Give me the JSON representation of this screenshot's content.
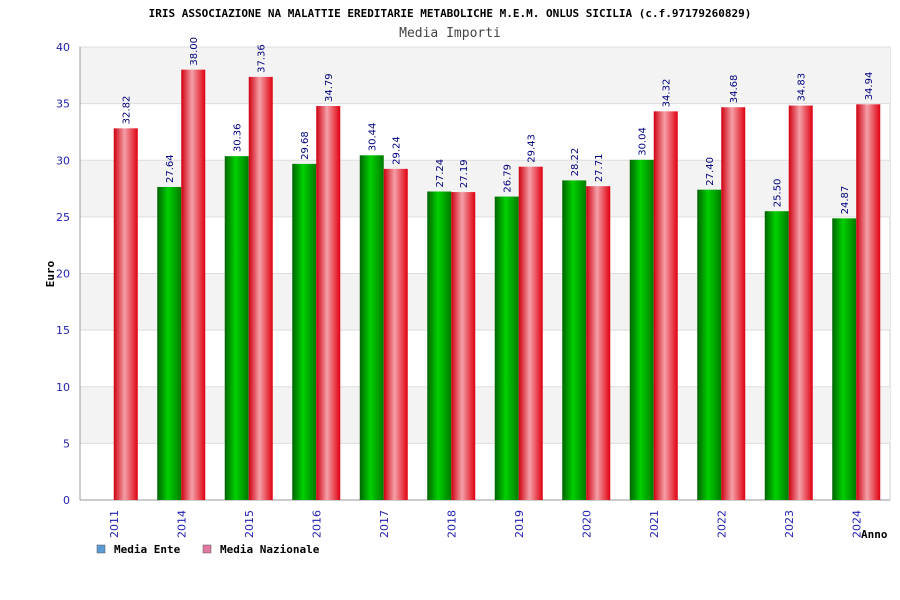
{
  "chart_data": {
    "type": "bar",
    "title": "IRIS ASSOCIAZIONE NA MALATTIE EREDITARIE METABOLICHE M.E.M. ONLUS SICILIA (c.f.97179260829)",
    "subtitle": "Media Importi",
    "xlabel": "Anno",
    "ylabel": "Euro",
    "ylim": [
      0,
      40
    ],
    "yticks": [
      "0",
      "5",
      "10",
      "15",
      "20",
      "25",
      "30",
      "35",
      "40"
    ],
    "grid": true,
    "legend_position": "bottom-left",
    "categories": [
      "2011",
      "2014",
      "2015",
      "2016",
      "2017",
      "2018",
      "2019",
      "2020",
      "2021",
      "2022",
      "2023",
      "2024"
    ],
    "series": [
      {
        "name": "Media Ente",
        "color": "#00a000",
        "legend_color": "#5b9bd5",
        "values": [
          null,
          27.64,
          30.36,
          29.68,
          30.44,
          27.24,
          26.79,
          28.22,
          30.04,
          27.4,
          25.5,
          24.87
        ],
        "labels": [
          "",
          "27.64",
          "30.36",
          "29.68",
          "30.44",
          "27.24",
          "26.79",
          "28.22",
          "30.04",
          "27.40",
          "25.50",
          "24.87"
        ]
      },
      {
        "name": "Media Nazionale",
        "color": "#e00010",
        "legend_color": "#e07aa0",
        "values": [
          32.82,
          38.0,
          37.36,
          34.79,
          29.24,
          27.19,
          29.43,
          27.71,
          34.32,
          34.68,
          34.83,
          34.94
        ],
        "labels": [
          "32.82",
          "38.00",
          "37.36",
          "34.79",
          "29.24",
          "27.19",
          "29.43",
          "27.71",
          "34.32",
          "34.68",
          "34.83",
          "34.94"
        ]
      }
    ]
  }
}
